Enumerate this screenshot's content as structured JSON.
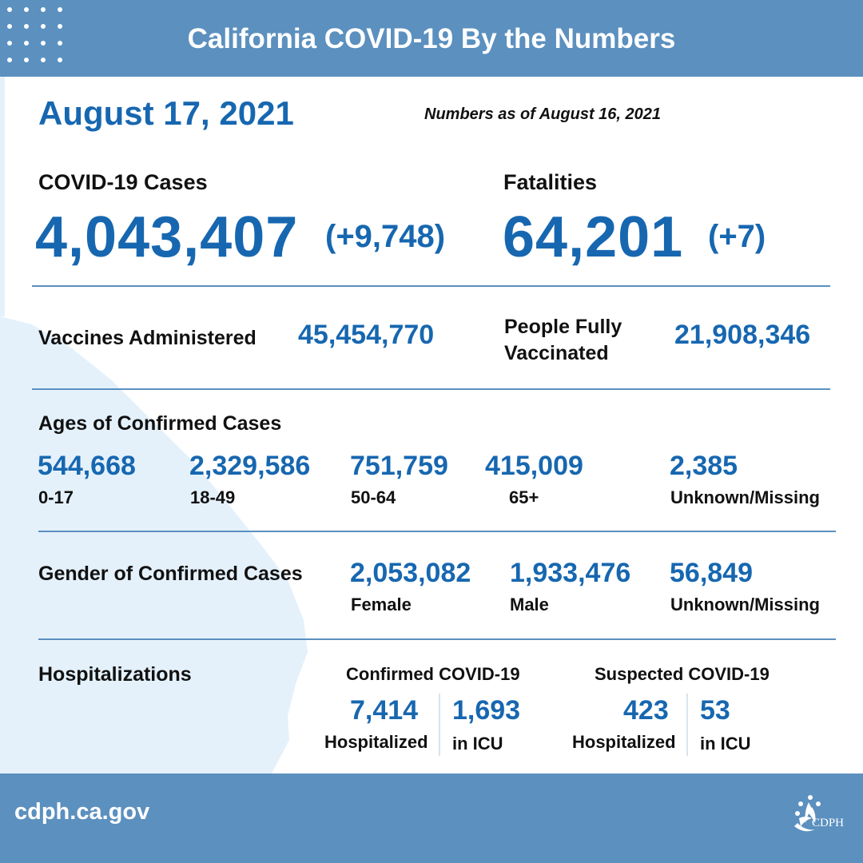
{
  "header": {
    "title": "California COVID-19 By the Numbers"
  },
  "date": "August 17, 2021",
  "as_of": "Numbers as of August 16, 2021",
  "cases": {
    "label": "COVID-19 Cases",
    "value": "4,043,407",
    "delta": "(+9,748)"
  },
  "fatalities": {
    "label": "Fatalities",
    "value": "64,201",
    "delta": "(+7)"
  },
  "vaccines": {
    "label": "Vaccines Administered",
    "value": "45,454,770"
  },
  "fully_vaccinated": {
    "label_line1": "People Fully",
    "label_line2": "Vaccinated",
    "value": "21,908,346"
  },
  "ages": {
    "title": "Ages of Confirmed Cases",
    "items": [
      {
        "value": "544,668",
        "label": "0-17"
      },
      {
        "value": "2,329,586",
        "label": "18-49"
      },
      {
        "value": "751,759",
        "label": "50-64"
      },
      {
        "value": "415,009",
        "label": "65+"
      },
      {
        "value": "2,385",
        "label": "Unknown/Missing"
      }
    ]
  },
  "gender": {
    "title": "Gender of Confirmed Cases",
    "items": [
      {
        "value": "2,053,082",
        "label": "Female"
      },
      {
        "value": "1,933,476",
        "label": "Male"
      },
      {
        "value": "56,849",
        "label": "Unknown/Missing"
      }
    ]
  },
  "hospitalizations": {
    "title": "Hospitalizations",
    "confirmed": {
      "title": "Confirmed COVID-19",
      "hospitalized_value": "7,414",
      "hospitalized_label": "Hospitalized",
      "icu_value": "1,693",
      "icu_label": "in ICU"
    },
    "suspected": {
      "title": "Suspected COVID-19",
      "hospitalized_value": "423",
      "hospitalized_label": "Hospitalized",
      "icu_value": "53",
      "icu_label": "in ICU"
    }
  },
  "footer": {
    "url": "cdph.ca.gov",
    "logo_text": "CDPH"
  },
  "colors": {
    "header_bg": "#5b90bf",
    "accent_blue": "#1767b0",
    "map_fill": "#e4f1fb"
  },
  "icons": {
    "dots": "dot-grid-icon",
    "logo": "cdph-logo-icon"
  }
}
